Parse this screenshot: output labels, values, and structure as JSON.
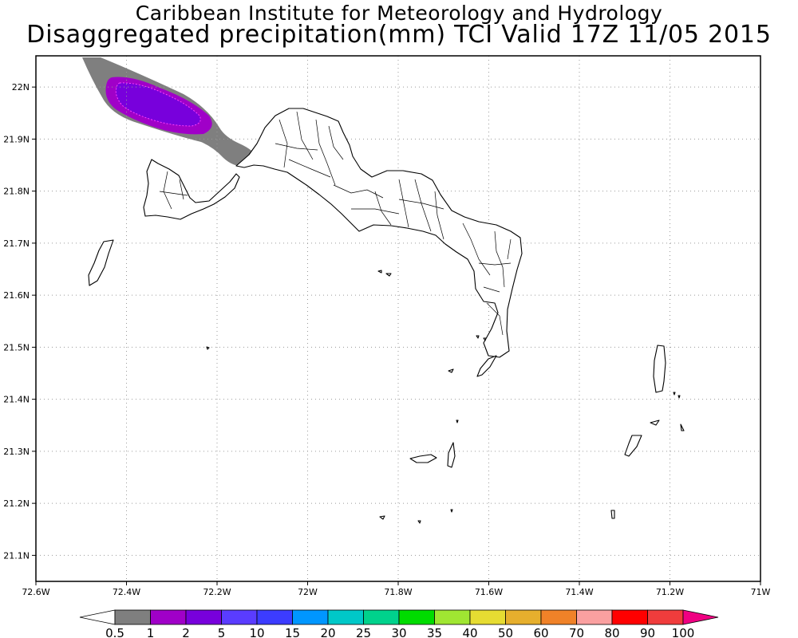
{
  "title_line1": "Caribbean Institute for Meteorology and Hydrology",
  "title_line2": "Disaggregated precipitation(mm) TCI Valid 17Z 11/05 2015",
  "map": {
    "lon_range": [
      -72.6,
      -71.0
    ],
    "lat_range": [
      21.05,
      22.06
    ],
    "grid": true,
    "lon_ticks": [
      {
        "value": -72.6,
        "label": "72.6W"
      },
      {
        "value": -72.4,
        "label": "72.4W"
      },
      {
        "value": -72.2,
        "label": "72.2W"
      },
      {
        "value": -72.0,
        "label": "72W"
      },
      {
        "value": -71.8,
        "label": "71.8W"
      },
      {
        "value": -71.6,
        "label": "71.6W"
      },
      {
        "value": -71.4,
        "label": "71.4W"
      },
      {
        "value": -71.2,
        "label": "71.2W"
      },
      {
        "value": -71.0,
        "label": "71W"
      }
    ],
    "lat_ticks": [
      {
        "value": 22.0,
        "label": "22N"
      },
      {
        "value": 21.9,
        "label": "21.9N"
      },
      {
        "value": 21.8,
        "label": "21.8N"
      },
      {
        "value": 21.7,
        "label": "21.7N"
      },
      {
        "value": 21.6,
        "label": "21.6N"
      },
      {
        "value": 21.5,
        "label": "21.5N"
      },
      {
        "value": 21.4,
        "label": "21.4N"
      },
      {
        "value": 21.3,
        "label": "21.3N"
      },
      {
        "value": 21.2,
        "label": "21.2N"
      },
      {
        "value": 21.1,
        "label": "21.1N"
      }
    ]
  },
  "colorbar": {
    "labels": [
      "0.5",
      "1",
      "2",
      "5",
      "10",
      "15",
      "20",
      "25",
      "30",
      "35",
      "40",
      "50",
      "60",
      "70",
      "80",
      "90",
      "100"
    ],
    "colors": [
      "#ffffff",
      "#7f7f7f",
      "#a000c8",
      "#7800dc",
      "#5a3cff",
      "#3c3cff",
      "#0096ff",
      "#00c8c8",
      "#00d28c",
      "#00dc00",
      "#a0e632",
      "#e6dc32",
      "#e6af2d",
      "#f08228",
      "#faa0a0",
      "#ff0000",
      "#f03c3c",
      "#f00082"
    ]
  },
  "precip_colors": {
    "light": "#7f7f7f",
    "medium": "#a000c8",
    "heavy": "#7800dc"
  }
}
